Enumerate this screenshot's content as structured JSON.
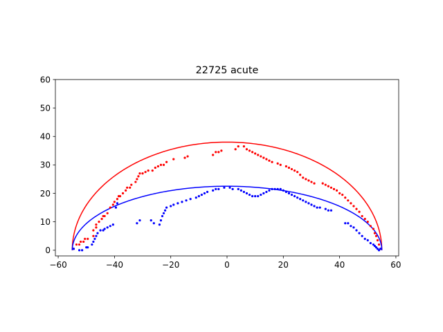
{
  "chart_data": {
    "type": "scatter",
    "title": "22725 acute",
    "xlabel": "",
    "ylabel": "",
    "xlim": [
      -61,
      61
    ],
    "ylim": [
      -2,
      60
    ],
    "xticks": [
      -60,
      -40,
      -20,
      0,
      20,
      40,
      60
    ],
    "yticks": [
      0,
      10,
      20,
      30,
      40,
      50,
      60
    ],
    "grid": false,
    "legend": "none",
    "curves": [
      {
        "color": "#ff0000",
        "shape": "semi-ellipse",
        "center_x": 0,
        "half_width": 55,
        "height": 38
      },
      {
        "color": "#0000ff",
        "shape": "semi-ellipse",
        "center_x": 0,
        "half_width": 55,
        "height": 22.5
      }
    ],
    "series": [
      {
        "color": "#ff0000",
        "points": [
          [
            -54.5,
            0.5
          ],
          [
            -53.5,
            2
          ],
          [
            -52.5,
            2
          ],
          [
            -52,
            3
          ],
          [
            -51,
            3
          ],
          [
            -50.5,
            4
          ],
          [
            -49.5,
            4
          ],
          [
            -47.5,
            5
          ],
          [
            -47.5,
            7
          ],
          [
            -46.5,
            8
          ],
          [
            -46.5,
            9
          ],
          [
            -45.5,
            10
          ],
          [
            -44.5,
            11
          ],
          [
            -44,
            12
          ],
          [
            -43.5,
            12
          ],
          [
            -42.5,
            13
          ],
          [
            -41.5,
            15
          ],
          [
            -40.5,
            16
          ],
          [
            -40,
            17
          ],
          [
            -39,
            18
          ],
          [
            -38.5,
            19
          ],
          [
            -38,
            19
          ],
          [
            -37,
            20
          ],
          [
            -36,
            21
          ],
          [
            -35.5,
            22
          ],
          [
            -34.5,
            22
          ],
          [
            -34,
            23
          ],
          [
            -32.5,
            24
          ],
          [
            -32,
            25
          ],
          [
            -31.5,
            26
          ],
          [
            -31,
            27
          ],
          [
            -30,
            27
          ],
          [
            -29,
            27.5
          ],
          [
            -28,
            28
          ],
          [
            -26.5,
            28
          ],
          [
            -25.5,
            29
          ],
          [
            -24.5,
            29.5
          ],
          [
            -23.5,
            30
          ],
          [
            -22.5,
            30
          ],
          [
            -21.5,
            31
          ],
          [
            -19,
            32
          ],
          [
            -15,
            32.5
          ],
          [
            -14,
            33
          ],
          [
            -5,
            33.5
          ],
          [
            -4,
            34.5
          ],
          [
            -3,
            34.5
          ],
          [
            -2,
            35
          ],
          [
            3,
            35.5
          ],
          [
            4,
            36.5
          ],
          [
            6,
            36.5
          ],
          [
            7,
            35.5
          ],
          [
            8,
            35
          ],
          [
            9,
            34.5
          ],
          [
            10,
            34
          ],
          [
            11,
            33.5
          ],
          [
            12,
            33
          ],
          [
            13,
            32.5
          ],
          [
            14,
            32
          ],
          [
            15,
            31.5
          ],
          [
            16,
            31
          ],
          [
            18,
            30.5
          ],
          [
            19,
            30
          ],
          [
            21,
            29.5
          ],
          [
            22,
            29
          ],
          [
            23,
            28.5
          ],
          [
            24,
            28
          ],
          [
            25,
            27.5
          ],
          [
            26,
            26.5
          ],
          [
            27,
            25.5
          ],
          [
            28,
            25
          ],
          [
            29,
            24.5
          ],
          [
            30,
            24
          ],
          [
            31,
            23.5
          ],
          [
            34,
            23.5
          ],
          [
            35,
            23
          ],
          [
            36,
            22.5
          ],
          [
            37,
            22
          ],
          [
            38,
            21.5
          ],
          [
            39,
            21
          ],
          [
            40,
            20
          ],
          [
            41,
            19.5
          ],
          [
            42,
            18.5
          ],
          [
            43,
            17.5
          ],
          [
            44,
            16.5
          ],
          [
            45,
            15.5
          ],
          [
            46,
            14.5
          ],
          [
            47,
            13.5
          ],
          [
            48,
            12
          ],
          [
            49,
            11
          ],
          [
            50,
            10
          ],
          [
            51,
            8.5
          ],
          [
            52,
            7.5
          ],
          [
            52.5,
            6
          ],
          [
            53,
            5
          ],
          [
            53.5,
            3.5
          ],
          [
            54,
            2
          ],
          [
            54.5,
            0.5
          ]
        ]
      },
      {
        "color": "#0000ff",
        "points": [
          [
            -54.5,
            0.5
          ],
          [
            -52.5,
            0
          ],
          [
            -51.5,
            0
          ],
          [
            -50,
            1
          ],
          [
            -49.5,
            1
          ],
          [
            -48,
            2
          ],
          [
            -47.5,
            3
          ],
          [
            -47,
            4
          ],
          [
            -46.5,
            5
          ],
          [
            -46,
            6
          ],
          [
            -45,
            7
          ],
          [
            -44,
            7
          ],
          [
            -43.5,
            7.5
          ],
          [
            -42.5,
            8
          ],
          [
            -41.5,
            8.5
          ],
          [
            -40.5,
            9
          ],
          [
            -39.5,
            15
          ],
          [
            -39,
            16.5
          ],
          [
            -32,
            9.5
          ],
          [
            -31,
            10.5
          ],
          [
            -27,
            10.5
          ],
          [
            -26,
            9.5
          ],
          [
            -24,
            9
          ],
          [
            -23.5,
            10.5
          ],
          [
            -23,
            12
          ],
          [
            -22.5,
            13
          ],
          [
            -22,
            14
          ],
          [
            -21.5,
            15
          ],
          [
            -20,
            15.5
          ],
          [
            -19,
            16
          ],
          [
            -17.5,
            16.5
          ],
          [
            -16,
            17
          ],
          [
            -14.5,
            17.5
          ],
          [
            -13,
            18
          ],
          [
            -11,
            18.5
          ],
          [
            -10,
            19
          ],
          [
            -9,
            19.5
          ],
          [
            -8,
            20
          ],
          [
            -7,
            20.5
          ],
          [
            -5,
            21
          ],
          [
            -4,
            21.5
          ],
          [
            -3,
            21.5
          ],
          [
            -1,
            22
          ],
          [
            1,
            22
          ],
          [
            2,
            21.5
          ],
          [
            4,
            21.5
          ],
          [
            5,
            21
          ],
          [
            6,
            20.5
          ],
          [
            7,
            20
          ],
          [
            8,
            19.5
          ],
          [
            9,
            19
          ],
          [
            10,
            19
          ],
          [
            11,
            19
          ],
          [
            12,
            19.5
          ],
          [
            13,
            20
          ],
          [
            14,
            20.5
          ],
          [
            15,
            21
          ],
          [
            16,
            21.5
          ],
          [
            17,
            21.5
          ],
          [
            18,
            21.5
          ],
          [
            19,
            21.5
          ],
          [
            20,
            21
          ],
          [
            21,
            20.5
          ],
          [
            22,
            20
          ],
          [
            23,
            19.5
          ],
          [
            24,
            19
          ],
          [
            25,
            18.5
          ],
          [
            26,
            18
          ],
          [
            27,
            17.5
          ],
          [
            28,
            17
          ],
          [
            29,
            16.5
          ],
          [
            30,
            16
          ],
          [
            31,
            15.5
          ],
          [
            32,
            15
          ],
          [
            33,
            15
          ],
          [
            35,
            14.5
          ],
          [
            36,
            14
          ],
          [
            37,
            14
          ],
          [
            42,
            9.5
          ],
          [
            43,
            9.5
          ],
          [
            44,
            8.5
          ],
          [
            45,
            8
          ],
          [
            46,
            7
          ],
          [
            47,
            6
          ],
          [
            48,
            5
          ],
          [
            49,
            4
          ],
          [
            50,
            3.5
          ],
          [
            51,
            2.5
          ],
          [
            52,
            2
          ],
          [
            52.5,
            1.5
          ],
          [
            53,
            1
          ],
          [
            53.5,
            0.5
          ],
          [
            54,
            0
          ],
          [
            54.5,
            0.5
          ]
        ]
      }
    ]
  }
}
